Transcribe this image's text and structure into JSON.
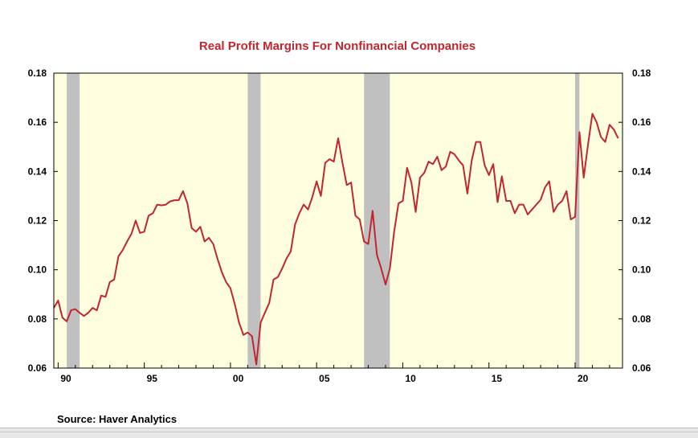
{
  "chart_data": {
    "type": "line",
    "title": "Real Profit Margins For Nonfinancial Companies",
    "source": "Source:  Haver Analytics",
    "xlim": [
      1989.75,
      2022.75
    ],
    "ylim": [
      0.06,
      0.18
    ],
    "yticks": [
      "0.06",
      "0.08",
      "0.10",
      "0.12",
      "0.14",
      "0.16",
      "0.18"
    ],
    "xticks": [
      {
        "label": "90",
        "year": 1990
      },
      {
        "label": "95",
        "year": 1995
      },
      {
        "label": "00",
        "year": 2000
      },
      {
        "label": "05",
        "year": 2005
      },
      {
        "label": "10",
        "year": 2010
      },
      {
        "label": "15",
        "year": 2015
      },
      {
        "label": "20",
        "year": 2020
      }
    ],
    "colors": {
      "line": "#c0262d",
      "plot_bg": "#ffffe0",
      "recession": "#c0c0c0",
      "title": "#c0262d"
    },
    "recessions": [
      [
        1990.5,
        1991.25
      ],
      [
        2001.0,
        2001.75
      ],
      [
        2007.75,
        2009.25
      ],
      [
        2020.0,
        2020.25
      ]
    ],
    "series": [
      {
        "x": [
          1989.75,
          1990.0,
          1990.25,
          1990.5,
          1990.75,
          1991.0,
          1991.25,
          1991.5,
          1991.75,
          1992.0,
          1992.25,
          1992.5,
          1992.75,
          1993.0,
          1993.25,
          1993.5,
          1993.75,
          1994.0,
          1994.25,
          1994.5,
          1994.75,
          1995.0,
          1995.25,
          1995.5,
          1995.75,
          1996.0,
          1996.25,
          1996.5,
          1996.75,
          1997.0,
          1997.25,
          1997.5,
          1997.75,
          1998.0,
          1998.25,
          1998.5,
          1998.75,
          1999.0,
          1999.25,
          1999.5,
          1999.75,
          2000.0,
          2000.25,
          2000.5,
          2000.75,
          2001.0,
          2001.25,
          2001.5,
          2001.75,
          2002.0,
          2002.25,
          2002.5,
          2002.75,
          2003.0,
          2003.25,
          2003.5,
          2003.75,
          2004.0,
          2004.25,
          2004.5,
          2004.75,
          2005.0,
          2005.25,
          2005.5,
          2005.75,
          2006.0,
          2006.25,
          2006.5,
          2006.75,
          2007.0,
          2007.25,
          2007.5,
          2007.75,
          2008.0,
          2008.25,
          2008.5,
          2008.75,
          2009.0,
          2009.25,
          2009.5,
          2009.75,
          2010.0,
          2010.25,
          2010.5,
          2010.75,
          2011.0,
          2011.25,
          2011.5,
          2011.75,
          2012.0,
          2012.25,
          2012.5,
          2012.75,
          2013.0,
          2013.25,
          2013.5,
          2013.75,
          2014.0,
          2014.25,
          2014.5,
          2014.75,
          2015.0,
          2015.25,
          2015.5,
          2015.75,
          2016.0,
          2016.25,
          2016.5,
          2016.75,
          2017.0,
          2017.25,
          2017.5,
          2017.75,
          2018.0,
          2018.25,
          2018.5,
          2018.75,
          2019.0,
          2019.25,
          2019.5,
          2019.75,
          2020.0,
          2020.25,
          2020.5,
          2020.75,
          2021.0,
          2021.25,
          2021.5,
          2021.75,
          2022.0,
          2022.25,
          2022.5
        ],
        "y": [
          0.0845,
          0.0875,
          0.0805,
          0.079,
          0.0835,
          0.084,
          0.0825,
          0.0812,
          0.0825,
          0.0845,
          0.0835,
          0.0895,
          0.089,
          0.095,
          0.096,
          0.1055,
          0.108,
          0.1115,
          0.1145,
          0.12,
          0.115,
          0.1155,
          0.122,
          0.123,
          0.1265,
          0.1262,
          0.1265,
          0.1278,
          0.1283,
          0.1283,
          0.132,
          0.127,
          0.117,
          0.1155,
          0.1175,
          0.1115,
          0.113,
          0.1105,
          0.1045,
          0.099,
          0.095,
          0.0925,
          0.086,
          0.0785,
          0.0735,
          0.0745,
          0.073,
          0.0615,
          0.0785,
          0.0825,
          0.0865,
          0.096,
          0.097,
          0.1005,
          0.1045,
          0.1075,
          0.1185,
          0.123,
          0.1265,
          0.1245,
          0.1295,
          0.136,
          0.13,
          0.1435,
          0.145,
          0.144,
          0.1535,
          0.1435,
          0.1345,
          0.1355,
          0.122,
          0.1205,
          0.1115,
          0.1105,
          0.124,
          0.106,
          0.1005,
          0.094,
          0.1005,
          0.1155,
          0.127,
          0.128,
          0.1415,
          0.1355,
          0.1235,
          0.1375,
          0.1395,
          0.144,
          0.143,
          0.146,
          0.1405,
          0.142,
          0.148,
          0.147,
          0.1445,
          0.1425,
          0.131,
          0.1445,
          0.152,
          0.152,
          0.1425,
          0.1385,
          0.143,
          0.1275,
          0.138,
          0.128,
          0.128,
          0.123,
          0.1265,
          0.1265,
          0.1225,
          0.1245,
          0.1265,
          0.1285,
          0.1335,
          0.136,
          0.1235,
          0.1265,
          0.128,
          0.132,
          0.1205,
          0.1215,
          0.156,
          0.1375,
          0.151,
          0.1635,
          0.16,
          0.154,
          0.152,
          0.159,
          0.157,
          0.1535
        ]
      }
    ]
  }
}
